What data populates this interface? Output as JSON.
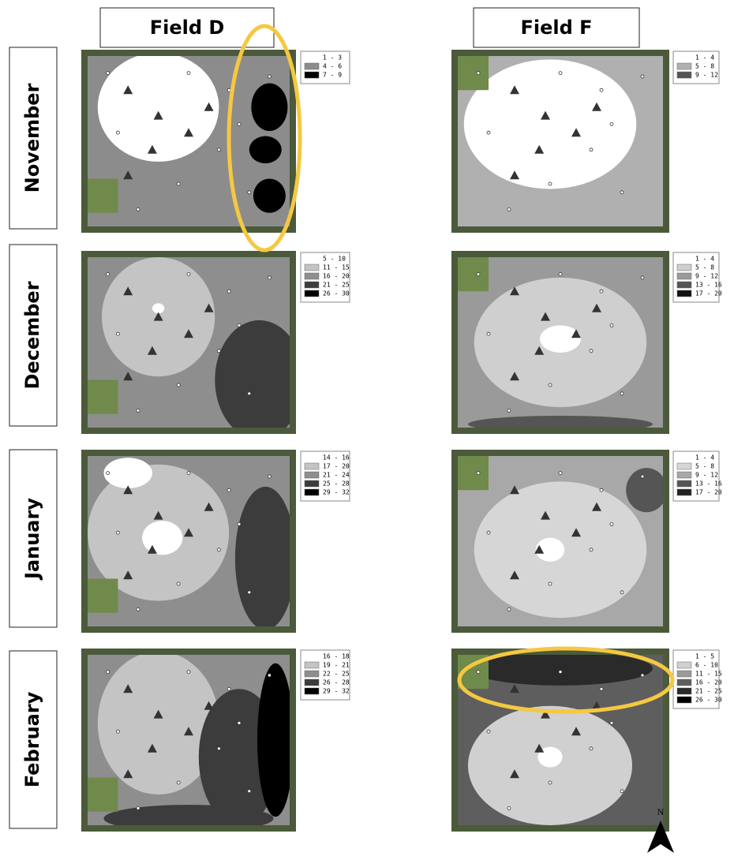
{
  "months": [
    "November",
    "December",
    "January",
    "February"
  ],
  "fields": [
    {
      "title": "Field D",
      "maps": [
        {
          "legend": [
            {
              "label": "1 - 3",
              "color": "#ffffff"
            },
            {
              "label": "4 - 6",
              "color": "#8c8c8c"
            },
            {
              "label": "7 - 9",
              "color": "#000000"
            }
          ]
        },
        {
          "legend": [
            {
              "label": "5 - 10",
              "color": "#ffffff"
            },
            {
              "label": "11 - 15",
              "color": "#c4c4c4"
            },
            {
              "label": "16 - 20",
              "color": "#8e8e8e"
            },
            {
              "label": "21 - 25",
              "color": "#3c3c3c"
            },
            {
              "label": "26 - 30",
              "color": "#000000"
            }
          ]
        },
        {
          "legend": [
            {
              "label": "14 - 16",
              "color": "#ffffff"
            },
            {
              "label": "17 - 20",
              "color": "#c4c4c4"
            },
            {
              "label": "21 - 24",
              "color": "#8e8e8e"
            },
            {
              "label": "25 - 28",
              "color": "#3c3c3c"
            },
            {
              "label": "29 - 32",
              "color": "#000000"
            }
          ]
        },
        {
          "legend": [
            {
              "label": "16 - 18",
              "color": "#ffffff"
            },
            {
              "label": "19 - 21",
              "color": "#c4c4c4"
            },
            {
              "label": "22 - 25",
              "color": "#8e8e8e"
            },
            {
              "label": "26 - 28",
              "color": "#3c3c3c"
            },
            {
              "label": "29 - 32",
              "color": "#000000"
            }
          ]
        }
      ]
    },
    {
      "title": "Field F",
      "maps": [
        {
          "legend": [
            {
              "label": "1 - 4",
              "color": "#ffffff"
            },
            {
              "label": "5 - 8",
              "color": "#b0b0b0"
            },
            {
              "label": "9 - 12",
              "color": "#555555"
            }
          ]
        },
        {
          "legend": [
            {
              "label": "1 - 4",
              "color": "#ffffff"
            },
            {
              "label": "5 - 8",
              "color": "#cfcfcf"
            },
            {
              "label": "9 - 12",
              "color": "#9a9a9a"
            },
            {
              "label": "13 - 16",
              "color": "#555555"
            },
            {
              "label": "17 - 20",
              "color": "#111111"
            }
          ]
        },
        {
          "legend": [
            {
              "label": "1 - 4",
              "color": "#ffffff"
            },
            {
              "label": "5 - 8",
              "color": "#d6d6d6"
            },
            {
              "label": "9 - 12",
              "color": "#a8a8a8"
            },
            {
              "label": "13 - 16",
              "color": "#555555"
            },
            {
              "label": "17 - 20",
              "color": "#222222"
            }
          ]
        },
        {
          "legend": [
            {
              "label": "1 - 5",
              "color": "#ffffff"
            },
            {
              "label": "6 - 10",
              "color": "#d0d0d0"
            },
            {
              "label": "11 - 15",
              "color": "#9a9a9a"
            },
            {
              "label": "16 - 20",
              "color": "#5e5e5e"
            },
            {
              "label": "21 - 25",
              "color": "#2a2a2a"
            },
            {
              "label": "26 - 30",
              "color": "#000000"
            }
          ]
        }
      ]
    }
  ],
  "north_label": "N"
}
